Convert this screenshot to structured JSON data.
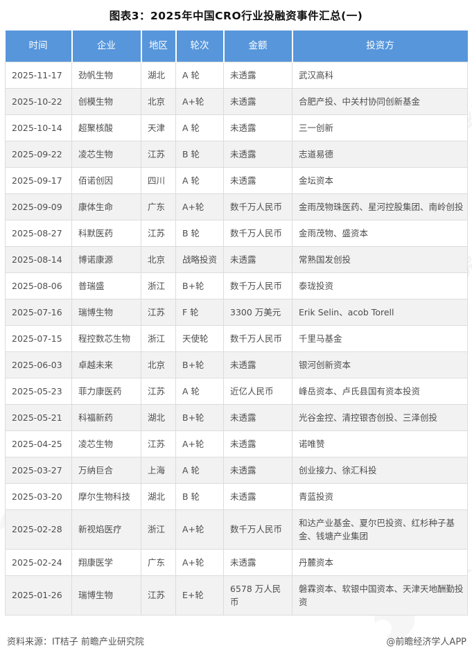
{
  "title": "图表3：2025年中国CRO行业投融资事件汇总(一)",
  "table": {
    "columns": [
      "时间",
      "企业",
      "地区",
      "轮次",
      "金额",
      "投资方"
    ],
    "rows": [
      {
        "date": "2025-11-17",
        "company": "劲帆生物",
        "region": "湖北",
        "round": "A 轮",
        "amount": "未透露",
        "investors": "武汉高科"
      },
      {
        "date": "2025-10-22",
        "company": "创模生物",
        "region": "北京",
        "round": "A+轮",
        "amount": "未透露",
        "investors": "合肥产投、中关村协同创新基金"
      },
      {
        "date": "2025-10-14",
        "company": "超聚核酸",
        "region": "天津",
        "round": "A 轮",
        "amount": "未透露",
        "investors": "三一创新"
      },
      {
        "date": "2025-09-22",
        "company": "凌芯生物",
        "region": "江苏",
        "round": "B 轮",
        "amount": "未透露",
        "investors": "志道易德"
      },
      {
        "date": "2025-09-17",
        "company": "佰诺创因",
        "region": "四川",
        "round": "A 轮",
        "amount": "未透露",
        "investors": "金坛资本"
      },
      {
        "date": "2025-09-09",
        "company": "康体生命",
        "region": "广东",
        "round": "A+轮",
        "amount": "数千万人民币",
        "investors": "金雨茂物珠医药、星河控股集团、南岭创投"
      },
      {
        "date": "2025-08-27",
        "company": "科默医药",
        "region": "江苏",
        "round": "B 轮",
        "amount": "数千万人民币",
        "investors": "金雨茂物、盛资本"
      },
      {
        "date": "2025-08-14",
        "company": "博诺康源",
        "region": "北京",
        "round": "战略投资",
        "amount": "未透露",
        "investors": "常熟国发创投"
      },
      {
        "date": "2025-08-06",
        "company": "普瑞盛",
        "region": "浙江",
        "round": "B+轮",
        "amount": "数千万人民币",
        "investors": "泰珑投资"
      },
      {
        "date": "2025-07-16",
        "company": "瑞博生物",
        "region": "江苏",
        "round": "F 轮",
        "amount": "3300 万美元",
        "investors": "Erik Selin、acob Torell"
      },
      {
        "date": "2025-07-15",
        "company": "程控数芯生物",
        "region": "浙江",
        "round": "天使轮",
        "amount": "数千万人民币",
        "investors": "千里马基金"
      },
      {
        "date": "2025-06-03",
        "company": "卓越未来",
        "region": "北京",
        "round": "B+轮",
        "amount": "未透露",
        "investors": "银河创新资本"
      },
      {
        "date": "2025-05-23",
        "company": "菲力康医药",
        "region": "江苏",
        "round": "A 轮",
        "amount": "近亿人民币",
        "investors": "峰岳资本、卢氏县国有资本投资"
      },
      {
        "date": "2025-05-21",
        "company": "科福新药",
        "region": "湖北",
        "round": "B+轮",
        "amount": "未透露",
        "investors": "光谷金控、清控银杏创投、三泽创投"
      },
      {
        "date": "2025-04-25",
        "company": "凌芯生物",
        "region": "江苏",
        "round": "A+轮",
        "amount": "未透露",
        "investors": "诺唯赞"
      },
      {
        "date": "2025-03-27",
        "company": "万纳巨合",
        "region": "上海",
        "round": "A 轮",
        "amount": "未透露",
        "investors": "创业接力、徐汇科投"
      },
      {
        "date": "2025-03-20",
        "company": "摩尔生物科技",
        "region": "湖北",
        "round": "B 轮",
        "amount": "未透露",
        "investors": "青蓝投资"
      },
      {
        "date": "2025-02-28",
        "company": "新视焰医疗",
        "region": "浙江",
        "round": "A+轮",
        "amount": "数千万人民币",
        "investors": "和达产业基金、夏尔巴投资、红杉种子基金、钱塘产业集团"
      },
      {
        "date": "2025-02-24",
        "company": "翔康医学",
        "region": "广东",
        "round": "A+轮",
        "amount": "未透露",
        "investors": "丹麓资本"
      },
      {
        "date": "2025-01-26",
        "company": "瑞博生物",
        "region": "江苏",
        "round": "E+轮",
        "amount": "6578 万人民币",
        "investors": "磐霖资本、软银中国资本、天津天地酬勤投资"
      }
    ]
  },
  "footer": {
    "source": "资料来源：IT桔子 前瞻产业研究院",
    "credit": "@前瞻经济学人APP"
  },
  "watermark": {
    "text": "前瞻产业研究院"
  },
  "colors": {
    "header_bg": "#5796DB",
    "header_text": "#ffffff",
    "stripe": "#f2f2f2",
    "border": "#dcdcdc",
    "body_text": "#4d4d4d"
  }
}
